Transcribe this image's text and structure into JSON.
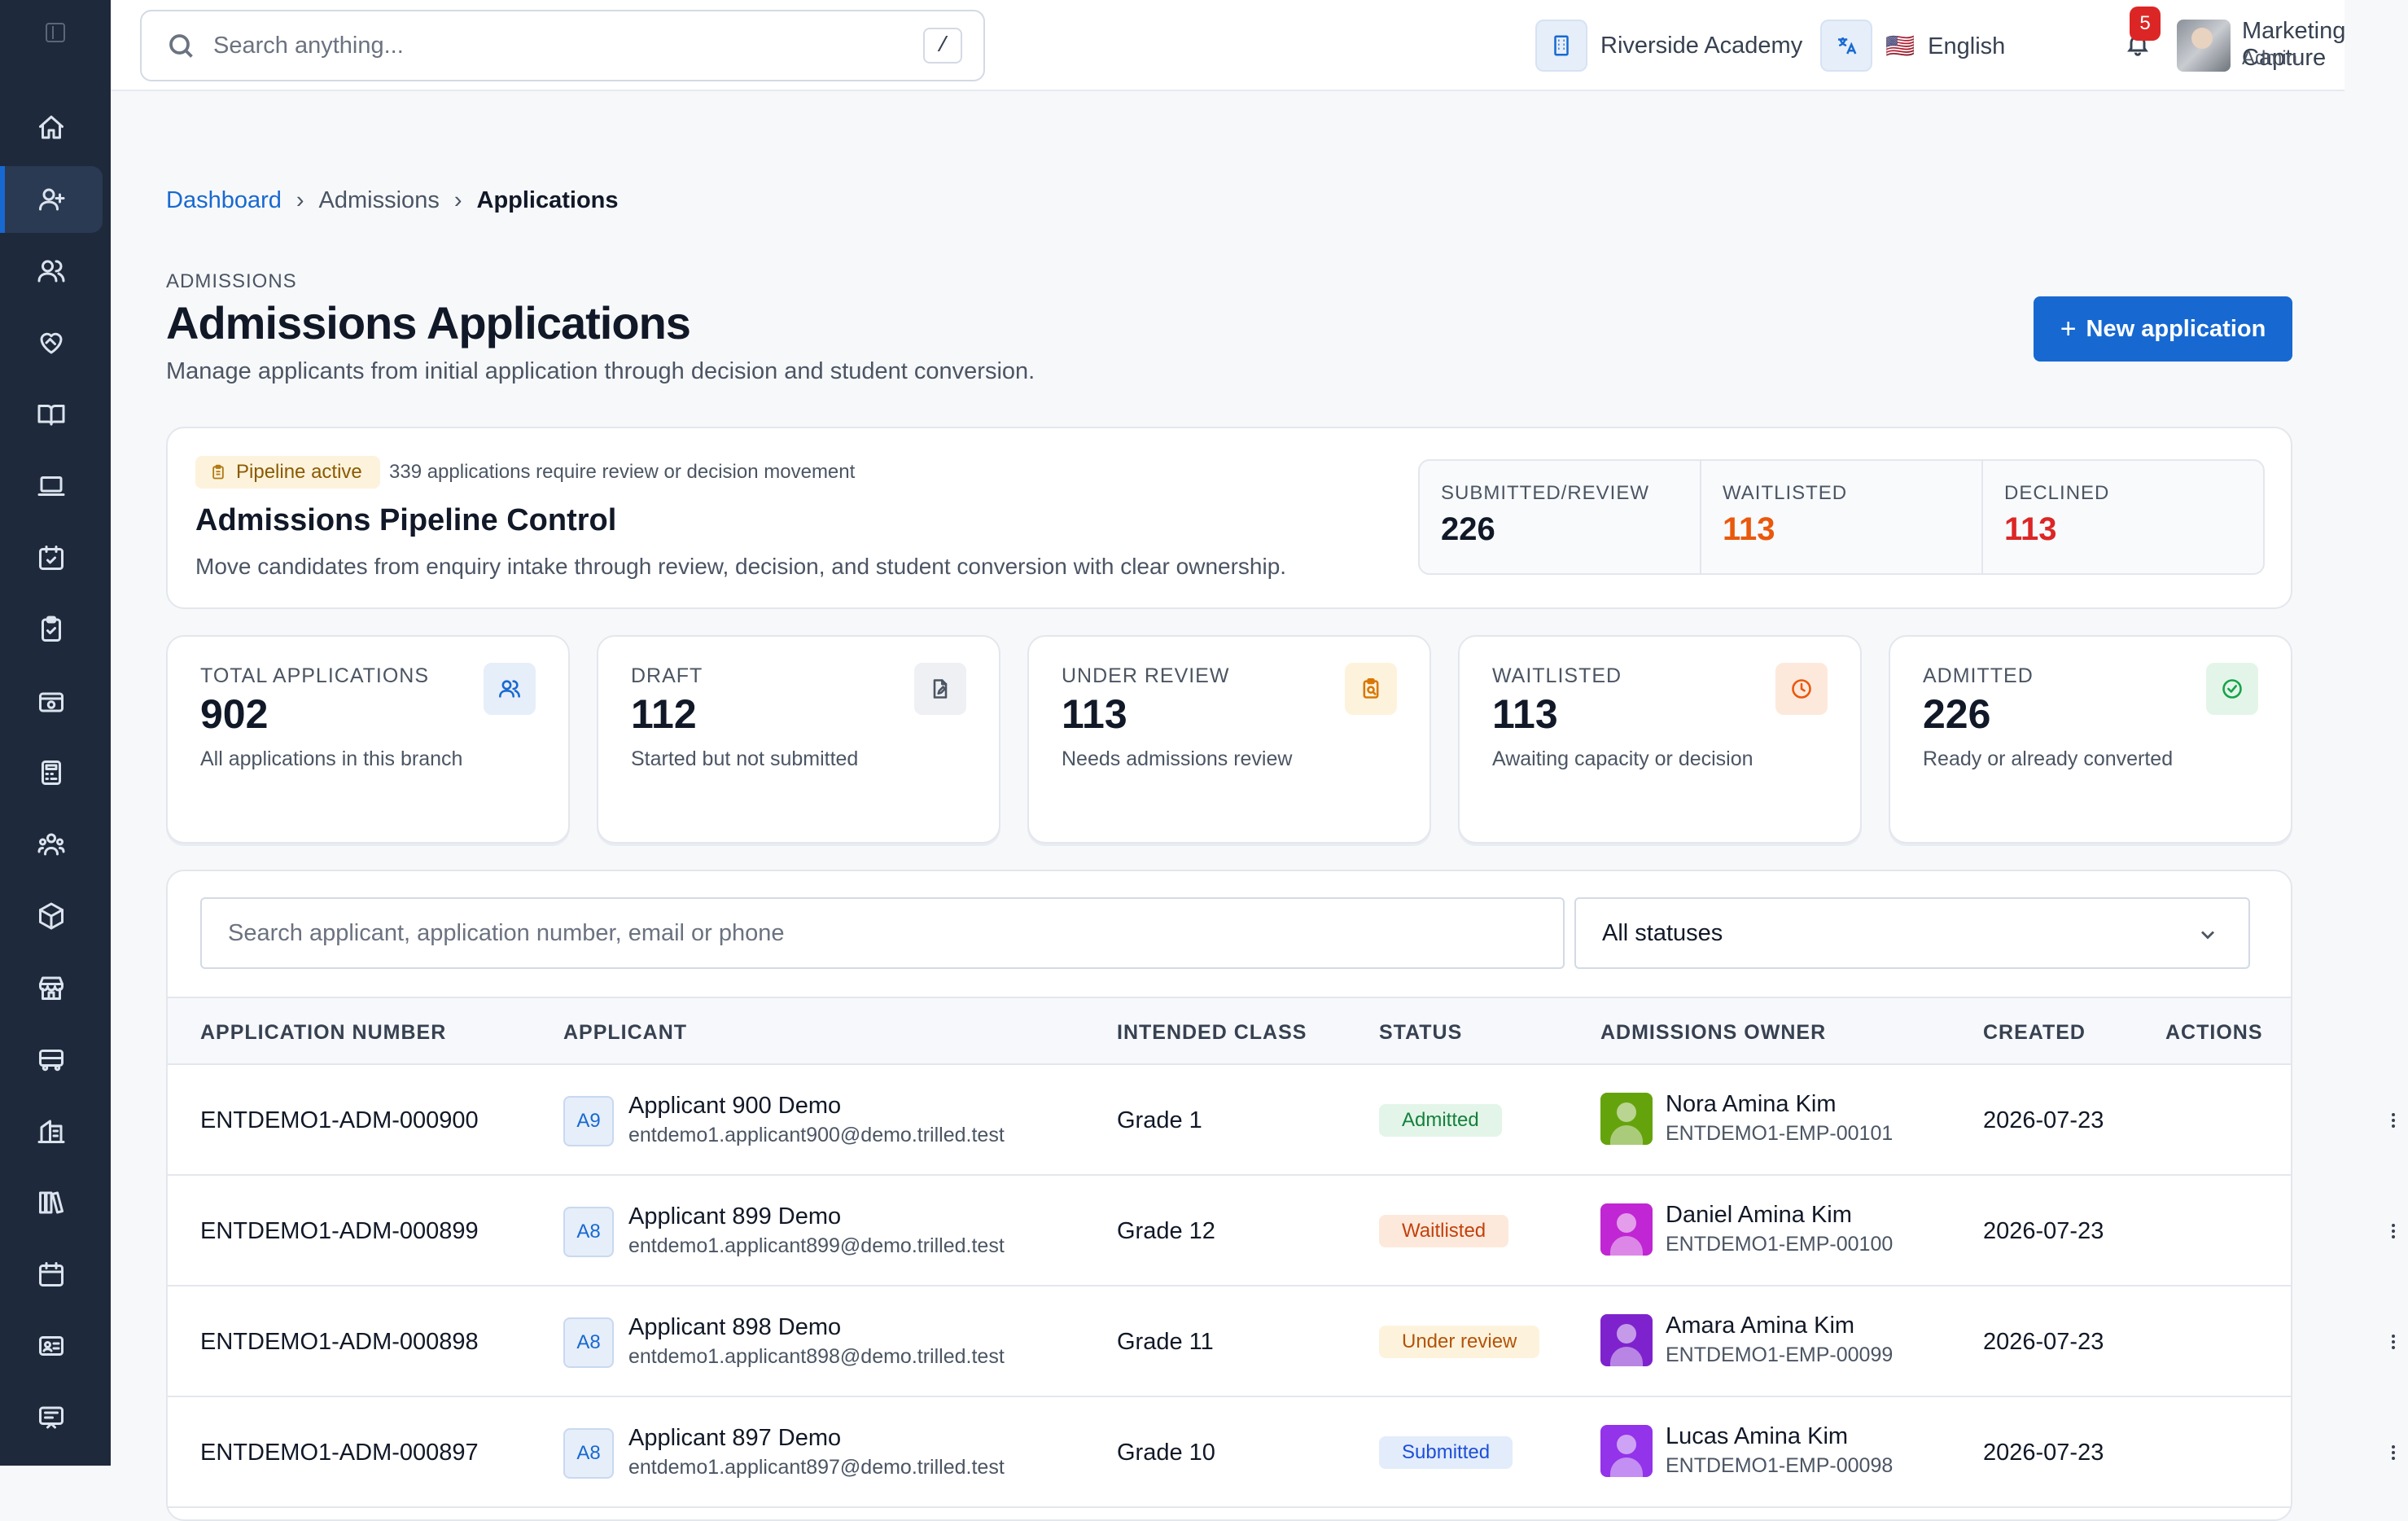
{
  "topbar": {
    "search_placeholder": "Search anything...",
    "search_shortcut": "/",
    "branch": "Riverside Academy",
    "language_flag": "🇺🇸",
    "language": "English",
    "notifications_count": "5",
    "user_name": "Marketing Capture",
    "user_role": "Admin"
  },
  "sidebar": {
    "items": [
      {
        "name": "home-icon"
      },
      {
        "name": "user-plus-icon",
        "active": true
      },
      {
        "name": "users-icon"
      },
      {
        "name": "heart-handshake-icon"
      },
      {
        "name": "book-open-icon"
      },
      {
        "name": "laptop-icon"
      },
      {
        "name": "calendar-check-icon"
      },
      {
        "name": "clipboard-check-icon"
      },
      {
        "name": "wallet-icon"
      },
      {
        "name": "calculator-icon"
      },
      {
        "name": "user-group-icon"
      },
      {
        "name": "package-icon"
      },
      {
        "name": "store-icon"
      },
      {
        "name": "bus-icon"
      },
      {
        "name": "building-icon"
      },
      {
        "name": "library-icon"
      },
      {
        "name": "calendar-icon"
      },
      {
        "name": "id-card-icon"
      },
      {
        "name": "receipt-icon"
      }
    ]
  },
  "breadcrumb": {
    "root": "Dashboard",
    "section": "Admissions",
    "current": "Applications",
    "sep": "›"
  },
  "header": {
    "eyebrow": "ADMISSIONS",
    "title": "Admissions Applications",
    "subtitle": "Manage applicants from initial application through decision and student conversion.",
    "new_button": "New application"
  },
  "pipeline": {
    "pill": "Pipeline active",
    "note": "339 applications require review or decision movement",
    "title": "Admissions Pipeline Control",
    "description": "Move candidates from enquiry intake through review, decision, and student conversion with clear ownership.",
    "stats": [
      {
        "label": "SUBMITTED/REVIEW",
        "value": "226",
        "color": "#111827"
      },
      {
        "label": "WAITLISTED",
        "value": "113",
        "color": "#ea580c"
      },
      {
        "label": "DECLINED",
        "value": "113",
        "color": "#dc2626"
      }
    ]
  },
  "kpis": [
    {
      "label": "TOTAL APPLICATIONS",
      "value": "902",
      "sub": "All applications in this branch",
      "icon": "users-icon",
      "accent": "#1769d1",
      "bg": "#e6eef9"
    },
    {
      "label": "DRAFT",
      "value": "112",
      "sub": "Started but not submitted",
      "icon": "file-edit-icon",
      "accent": "#4b5563",
      "bg": "#eef0f3"
    },
    {
      "label": "UNDER REVIEW",
      "value": "113",
      "sub": "Needs admissions review",
      "icon": "clipboard-search-icon",
      "accent": "#d97706",
      "bg": "#fdf3dc"
    },
    {
      "label": "WAITLISTED",
      "value": "113",
      "sub": "Awaiting capacity or decision",
      "icon": "clock-icon",
      "accent": "#ea580c",
      "bg": "#fde9dc"
    },
    {
      "label": "ADMITTED",
      "value": "226",
      "sub": "Ready or already converted",
      "icon": "check-circle-icon",
      "accent": "#16a34a",
      "bg": "#e3f5e8"
    }
  ],
  "table": {
    "search_placeholder": "Search applicant, application number, email or phone",
    "status_filter": "All statuses",
    "columns": [
      "APPLICATION NUMBER",
      "APPLICANT",
      "INTENDED CLASS",
      "STATUS",
      "ADMISSIONS OWNER",
      "CREATED",
      "ACTIONS"
    ],
    "rows": [
      {
        "number": "ENTDEMO1-ADM-000900",
        "initials": "A9",
        "applicant": "Applicant 900 Demo",
        "email": "entdemo1.applicant900@demo.trilled.test",
        "class": "Grade 1",
        "status": "Admitted",
        "status_fg": "#15803d",
        "status_bg": "#e3f5e8",
        "owner": "Nora Amina Kim",
        "owner_id": "ENTDEMO1-EMP-00101",
        "owner_color": "#65a30d",
        "created": "2026-07-23"
      },
      {
        "number": "ENTDEMO1-ADM-000899",
        "initials": "A8",
        "applicant": "Applicant 899 Demo",
        "email": "entdemo1.applicant899@demo.trilled.test",
        "class": "Grade 12",
        "status": "Waitlisted",
        "status_fg": "#c2410c",
        "status_bg": "#fde9dc",
        "owner": "Daniel Amina Kim",
        "owner_id": "ENTDEMO1-EMP-00100",
        "owner_color": "#c026d3",
        "created": "2026-07-23"
      },
      {
        "number": "ENTDEMO1-ADM-000898",
        "initials": "A8",
        "applicant": "Applicant 898 Demo",
        "email": "entdemo1.applicant898@demo.trilled.test",
        "class": "Grade 11",
        "status": "Under review",
        "status_fg": "#b45309",
        "status_bg": "#fdf3dc",
        "owner": "Amara Amina Kim",
        "owner_id": "ENTDEMO1-EMP-00099",
        "owner_color": "#7e22ce",
        "created": "2026-07-23"
      },
      {
        "number": "ENTDEMO1-ADM-000897",
        "initials": "A8",
        "applicant": "Applicant 897 Demo",
        "email": "entdemo1.applicant897@demo.trilled.test",
        "class": "Grade 10",
        "status": "Submitted",
        "status_fg": "#1d4ed8",
        "status_bg": "#e2ecfb",
        "owner": "Lucas Amina Kim",
        "owner_id": "ENTDEMO1-EMP-00098",
        "owner_color": "#9333ea",
        "created": "2026-07-23"
      }
    ]
  }
}
